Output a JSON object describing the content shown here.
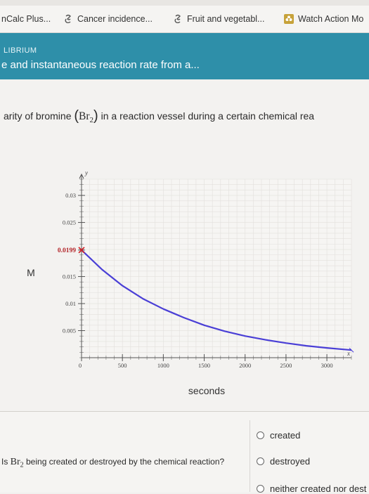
{
  "bookmarks": [
    {
      "label": "nCalc Plus...",
      "icon": "none"
    },
    {
      "label": "Cancer incidence...",
      "icon": "paperclip-icon"
    },
    {
      "label": "Fruit and vegetabl...",
      "icon": "paperclip-icon"
    },
    {
      "label": "Watch Action Mo",
      "icon": "flower-icon"
    }
  ],
  "header": {
    "section": "LIBRIUM",
    "title": "e and instantaneous reaction rate from a..."
  },
  "problem": {
    "text_before": "arity of bromine ",
    "species": "Br",
    "subscript": "2",
    "text_after": " in a reaction vessel during a certain chemical rea"
  },
  "chart_data": {
    "type": "line",
    "ylabel": "M",
    "xlabel": "seconds",
    "y_axis_symbol": "y",
    "x_axis_symbol": "x",
    "xlim": [
      0,
      3300
    ],
    "ylim": [
      0,
      0.033
    ],
    "x_ticks": [
      0,
      500,
      1000,
      1500,
      2000,
      2500,
      3000
    ],
    "x_tick_labels": [
      "0",
      "500",
      "1000",
      "1500",
      "2000",
      "2500",
      "3000"
    ],
    "y_ticks": [
      0.005,
      0.01,
      0.015,
      0.0199,
      0.025,
      0.03
    ],
    "y_tick_labels": [
      "0.005",
      "0.01",
      "0.015",
      "0.0199",
      "0.025",
      "0.03"
    ],
    "highlight_label": "0.0199",
    "series": [
      {
        "color": "#4a3fd6",
        "x": [
          0,
          250,
          500,
          750,
          1000,
          1250,
          1500,
          1750,
          2000,
          2250,
          2500,
          2750,
          3000,
          3300
        ],
        "y": [
          0.0199,
          0.0163,
          0.0133,
          0.0109,
          0.009,
          0.0074,
          0.006,
          0.0049,
          0.004,
          0.0033,
          0.0027,
          0.0022,
          0.0018,
          0.0014
        ]
      }
    ],
    "grid": true
  },
  "question": {
    "text_before": "Is ",
    "species": "Br",
    "subscript": "2",
    "text_after": " being created or destroyed by the chemical reaction?"
  },
  "options": [
    "created",
    "destroyed",
    "neither created nor dest"
  ]
}
